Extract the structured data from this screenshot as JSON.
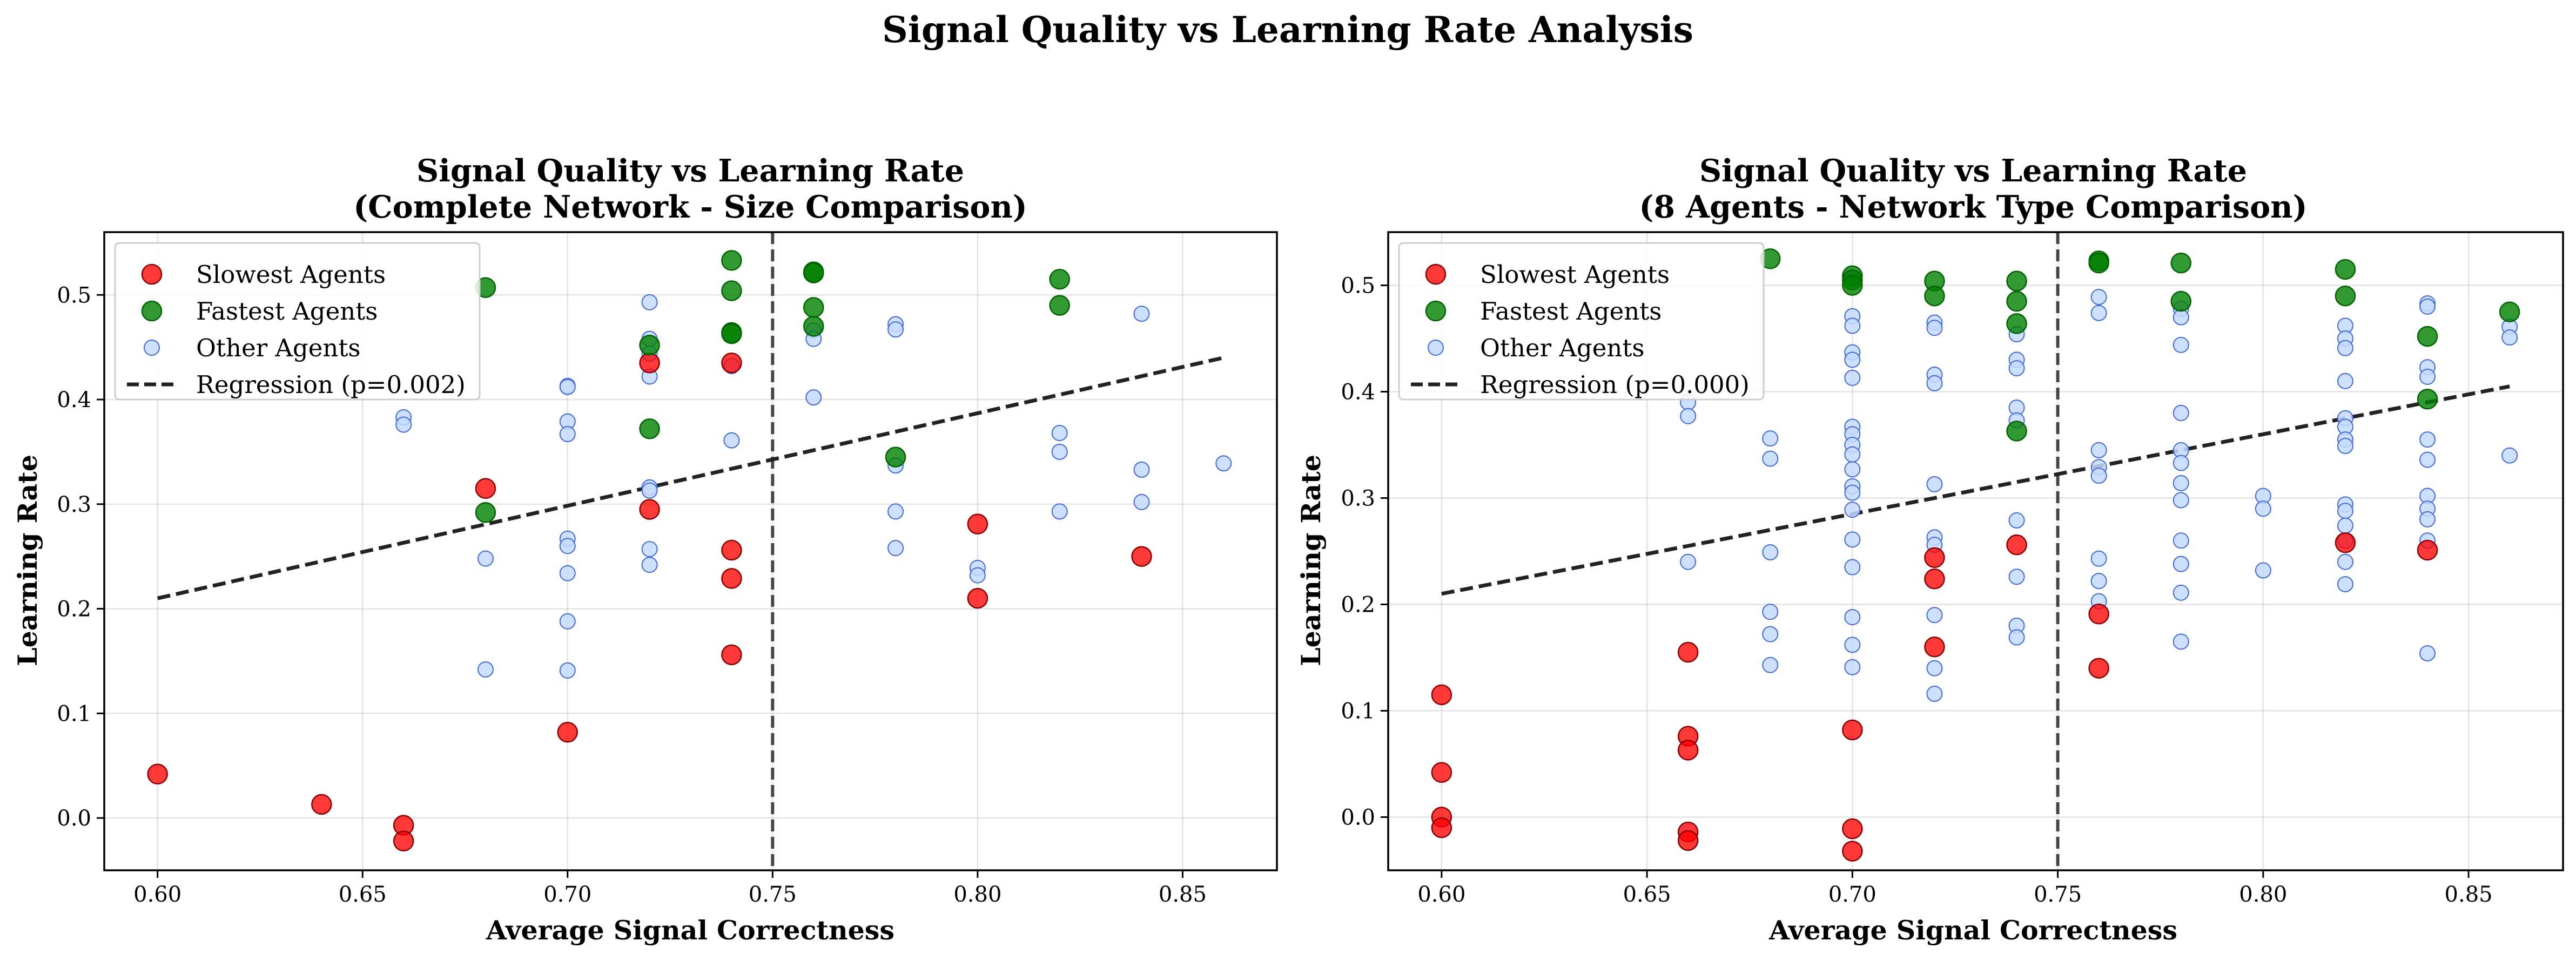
{
  "figure": {
    "title": "Signal Quality vs Learning Rate Analysis"
  },
  "colors": {
    "slowest_fill": "#ff0000",
    "slowest_edge": "#8b0000",
    "fastest_fill": "#008000",
    "fastest_edge": "#006400",
    "other_fill": "#c6dbff",
    "other_edge": "#4169e1",
    "regression": "#222222",
    "threshold": "#333333"
  },
  "chart_data": [
    {
      "type": "scatter",
      "title_line1": "Signal Quality vs Learning Rate",
      "title_line2": "(Complete Network - Size Comparison)",
      "xlabel": "Average Signal Correctness",
      "ylabel": "Learning Rate",
      "xlim": [
        0.587,
        0.873
      ],
      "ylim": [
        -0.05,
        0.56
      ],
      "xticks": [
        0.6,
        0.65,
        0.7,
        0.75,
        0.8,
        0.85
      ],
      "xtick_labels": [
        "0.60",
        "0.65",
        "0.70",
        "0.75",
        "0.80",
        "0.85"
      ],
      "yticks": [
        0.0,
        0.1,
        0.2,
        0.3,
        0.4,
        0.5
      ],
      "ytick_labels": [
        "0.0",
        "0.1",
        "0.2",
        "0.3",
        "0.4",
        "0.5"
      ],
      "grid": true,
      "legend_position": "upper-left",
      "threshold_x": 0.75,
      "regression": {
        "label": "Regression (p=0.002)",
        "x": [
          0.6,
          0.86
        ],
        "y": [
          0.21,
          0.44
        ]
      },
      "series": [
        {
          "name": "Slowest Agents",
          "role": "slowest",
          "points": [
            [
              0.6,
              0.042
            ],
            [
              0.64,
              0.013
            ],
            [
              0.66,
              -0.007
            ],
            [
              0.66,
              -0.022
            ],
            [
              0.68,
              0.315
            ],
            [
              0.7,
              0.082
            ],
            [
              0.72,
              0.435
            ],
            [
              0.72,
              0.295
            ],
            [
              0.74,
              0.435
            ],
            [
              0.74,
              0.256
            ],
            [
              0.74,
              0.229
            ],
            [
              0.74,
              0.156
            ],
            [
              0.8,
              0.281
            ],
            [
              0.8,
              0.21
            ],
            [
              0.84,
              0.25
            ]
          ]
        },
        {
          "name": "Fastest Agents",
          "role": "fastest",
          "points": [
            [
              0.68,
              0.507
            ],
            [
              0.68,
              0.292
            ],
            [
              0.72,
              0.452
            ],
            [
              0.72,
              0.372
            ],
            [
              0.74,
              0.533
            ],
            [
              0.74,
              0.504
            ],
            [
              0.74,
              0.464
            ],
            [
              0.74,
              0.463
            ],
            [
              0.76,
              0.522
            ],
            [
              0.76,
              0.521
            ],
            [
              0.76,
              0.488
            ],
            [
              0.76,
              0.47
            ],
            [
              0.78,
              0.345
            ],
            [
              0.82,
              0.515
            ],
            [
              0.82,
              0.49
            ]
          ]
        },
        {
          "name": "Other Agents",
          "role": "other",
          "points": [
            [
              0.66,
              0.383
            ],
            [
              0.66,
              0.376
            ],
            [
              0.68,
              0.248
            ],
            [
              0.68,
              0.142
            ],
            [
              0.7,
              0.413
            ],
            [
              0.7,
              0.412
            ],
            [
              0.7,
              0.379
            ],
            [
              0.7,
              0.367
            ],
            [
              0.7,
              0.267
            ],
            [
              0.7,
              0.26
            ],
            [
              0.7,
              0.234
            ],
            [
              0.7,
              0.188
            ],
            [
              0.7,
              0.141
            ],
            [
              0.72,
              0.493
            ],
            [
              0.72,
              0.458
            ],
            [
              0.72,
              0.444
            ],
            [
              0.72,
              0.422
            ],
            [
              0.72,
              0.316
            ],
            [
              0.72,
              0.313
            ],
            [
              0.72,
              0.257
            ],
            [
              0.72,
              0.242
            ],
            [
              0.74,
              0.432
            ],
            [
              0.74,
              0.361
            ],
            [
              0.76,
              0.466
            ],
            [
              0.76,
              0.458
            ],
            [
              0.76,
              0.402
            ],
            [
              0.78,
              0.472
            ],
            [
              0.78,
              0.467
            ],
            [
              0.78,
              0.337
            ],
            [
              0.78,
              0.293
            ],
            [
              0.78,
              0.258
            ],
            [
              0.8,
              0.239
            ],
            [
              0.8,
              0.232
            ],
            [
              0.82,
              0.368
            ],
            [
              0.82,
              0.35
            ],
            [
              0.82,
              0.293
            ],
            [
              0.84,
              0.482
            ],
            [
              0.84,
              0.333
            ],
            [
              0.84,
              0.302
            ],
            [
              0.86,
              0.339
            ]
          ]
        }
      ]
    },
    {
      "type": "scatter",
      "title_line1": "Signal Quality vs Learning Rate",
      "title_line2": "(8 Agents - Network Type Comparison)",
      "xlabel": "Average Signal Correctness",
      "ylabel": "Learning Rate",
      "xlim": [
        0.587,
        0.873
      ],
      "ylim": [
        -0.05,
        0.55
      ],
      "xticks": [
        0.6,
        0.65,
        0.7,
        0.75,
        0.8,
        0.85
      ],
      "xtick_labels": [
        "0.60",
        "0.65",
        "0.70",
        "0.75",
        "0.80",
        "0.85"
      ],
      "yticks": [
        0.0,
        0.1,
        0.2,
        0.3,
        0.4,
        0.5
      ],
      "ytick_labels": [
        "0.0",
        "0.1",
        "0.2",
        "0.3",
        "0.4",
        "0.5"
      ],
      "grid": true,
      "legend_position": "upper-left",
      "threshold_x": 0.75,
      "regression": {
        "label": "Regression (p=0.000)",
        "x": [
          0.6,
          0.86
        ],
        "y": [
          0.21,
          0.405
        ]
      },
      "series": [
        {
          "name": "Slowest Agents",
          "role": "slowest",
          "points": [
            [
              0.6,
              0.115
            ],
            [
              0.6,
              0.042
            ],
            [
              0.6,
              0.0
            ],
            [
              0.6,
              -0.01
            ],
            [
              0.66,
              0.155
            ],
            [
              0.66,
              0.076
            ],
            [
              0.66,
              0.063
            ],
            [
              0.66,
              -0.014
            ],
            [
              0.66,
              -0.022
            ],
            [
              0.7,
              0.082
            ],
            [
              0.7,
              -0.011
            ],
            [
              0.7,
              -0.032
            ],
            [
              0.72,
              0.244
            ],
            [
              0.72,
              0.224
            ],
            [
              0.72,
              0.16
            ],
            [
              0.74,
              0.256
            ],
            [
              0.76,
              0.191
            ],
            [
              0.76,
              0.14
            ],
            [
              0.82,
              0.258
            ],
            [
              0.84,
              0.251
            ]
          ]
        },
        {
          "name": "Fastest Agents",
          "role": "fastest",
          "points": [
            [
              0.68,
              0.525
            ],
            [
              0.7,
              0.509
            ],
            [
              0.7,
              0.505
            ],
            [
              0.7,
              0.5
            ],
            [
              0.72,
              0.504
            ],
            [
              0.72,
              0.49
            ],
            [
              0.74,
              0.504
            ],
            [
              0.74,
              0.485
            ],
            [
              0.74,
              0.464
            ],
            [
              0.74,
              0.363
            ],
            [
              0.76,
              0.523
            ],
            [
              0.76,
              0.521
            ],
            [
              0.78,
              0.521
            ],
            [
              0.78,
              0.485
            ],
            [
              0.82,
              0.515
            ],
            [
              0.82,
              0.49
            ],
            [
              0.84,
              0.452
            ],
            [
              0.84,
              0.393
            ],
            [
              0.86,
              0.475
            ]
          ]
        },
        {
          "name": "Other Agents",
          "role": "other",
          "points": [
            [
              0.66,
              0.39
            ],
            [
              0.66,
              0.377
            ],
            [
              0.66,
              0.24
            ],
            [
              0.68,
              0.356
            ],
            [
              0.68,
              0.337
            ],
            [
              0.68,
              0.249
            ],
            [
              0.68,
              0.193
            ],
            [
              0.68,
              0.172
            ],
            [
              0.68,
              0.143
            ],
            [
              0.7,
              0.471
            ],
            [
              0.7,
              0.462
            ],
            [
              0.7,
              0.437
            ],
            [
              0.7,
              0.43
            ],
            [
              0.7,
              0.413
            ],
            [
              0.7,
              0.367
            ],
            [
              0.7,
              0.36
            ],
            [
              0.7,
              0.35
            ],
            [
              0.7,
              0.341
            ],
            [
              0.7,
              0.327
            ],
            [
              0.7,
              0.311
            ],
            [
              0.7,
              0.305
            ],
            [
              0.7,
              0.289
            ],
            [
              0.7,
              0.261
            ],
            [
              0.7,
              0.235
            ],
            [
              0.7,
              0.188
            ],
            [
              0.7,
              0.162
            ],
            [
              0.7,
              0.141
            ],
            [
              0.72,
              0.465
            ],
            [
              0.72,
              0.46
            ],
            [
              0.72,
              0.416
            ],
            [
              0.72,
              0.408
            ],
            [
              0.72,
              0.313
            ],
            [
              0.72,
              0.263
            ],
            [
              0.72,
              0.256
            ],
            [
              0.72,
              0.19
            ],
            [
              0.72,
              0.14
            ],
            [
              0.72,
              0.116
            ],
            [
              0.74,
              0.454
            ],
            [
              0.74,
              0.43
            ],
            [
              0.74,
              0.422
            ],
            [
              0.74,
              0.385
            ],
            [
              0.74,
              0.373
            ],
            [
              0.74,
              0.279
            ],
            [
              0.74,
              0.226
            ],
            [
              0.74,
              0.18
            ],
            [
              0.74,
              0.169
            ],
            [
              0.76,
              0.489
            ],
            [
              0.76,
              0.474
            ],
            [
              0.76,
              0.345
            ],
            [
              0.76,
              0.329
            ],
            [
              0.76,
              0.321
            ],
            [
              0.76,
              0.243
            ],
            [
              0.76,
              0.222
            ],
            [
              0.76,
              0.203
            ],
            [
              0.78,
              0.478
            ],
            [
              0.78,
              0.47
            ],
            [
              0.78,
              0.444
            ],
            [
              0.78,
              0.38
            ],
            [
              0.78,
              0.345
            ],
            [
              0.78,
              0.333
            ],
            [
              0.78,
              0.314
            ],
            [
              0.78,
              0.298
            ],
            [
              0.78,
              0.26
            ],
            [
              0.78,
              0.238
            ],
            [
              0.78,
              0.211
            ],
            [
              0.78,
              0.165
            ],
            [
              0.8,
              0.302
            ],
            [
              0.8,
              0.29
            ],
            [
              0.8,
              0.232
            ],
            [
              0.82,
              0.462
            ],
            [
              0.82,
              0.45
            ],
            [
              0.82,
              0.441
            ],
            [
              0.82,
              0.41
            ],
            [
              0.82,
              0.375
            ],
            [
              0.82,
              0.367
            ],
            [
              0.82,
              0.355
            ],
            [
              0.82,
              0.349
            ],
            [
              0.82,
              0.294
            ],
            [
              0.82,
              0.288
            ],
            [
              0.82,
              0.274
            ],
            [
              0.82,
              0.26
            ],
            [
              0.82,
              0.24
            ],
            [
              0.82,
              0.219
            ],
            [
              0.84,
              0.483
            ],
            [
              0.84,
              0.48
            ],
            [
              0.84,
              0.423
            ],
            [
              0.84,
              0.414
            ],
            [
              0.84,
              0.355
            ],
            [
              0.84,
              0.336
            ],
            [
              0.84,
              0.302
            ],
            [
              0.84,
              0.29
            ],
            [
              0.84,
              0.28
            ],
            [
              0.84,
              0.26
            ],
            [
              0.84,
              0.154
            ],
            [
              0.86,
              0.461
            ],
            [
              0.86,
              0.451
            ],
            [
              0.86,
              0.34
            ]
          ]
        }
      ]
    }
  ]
}
